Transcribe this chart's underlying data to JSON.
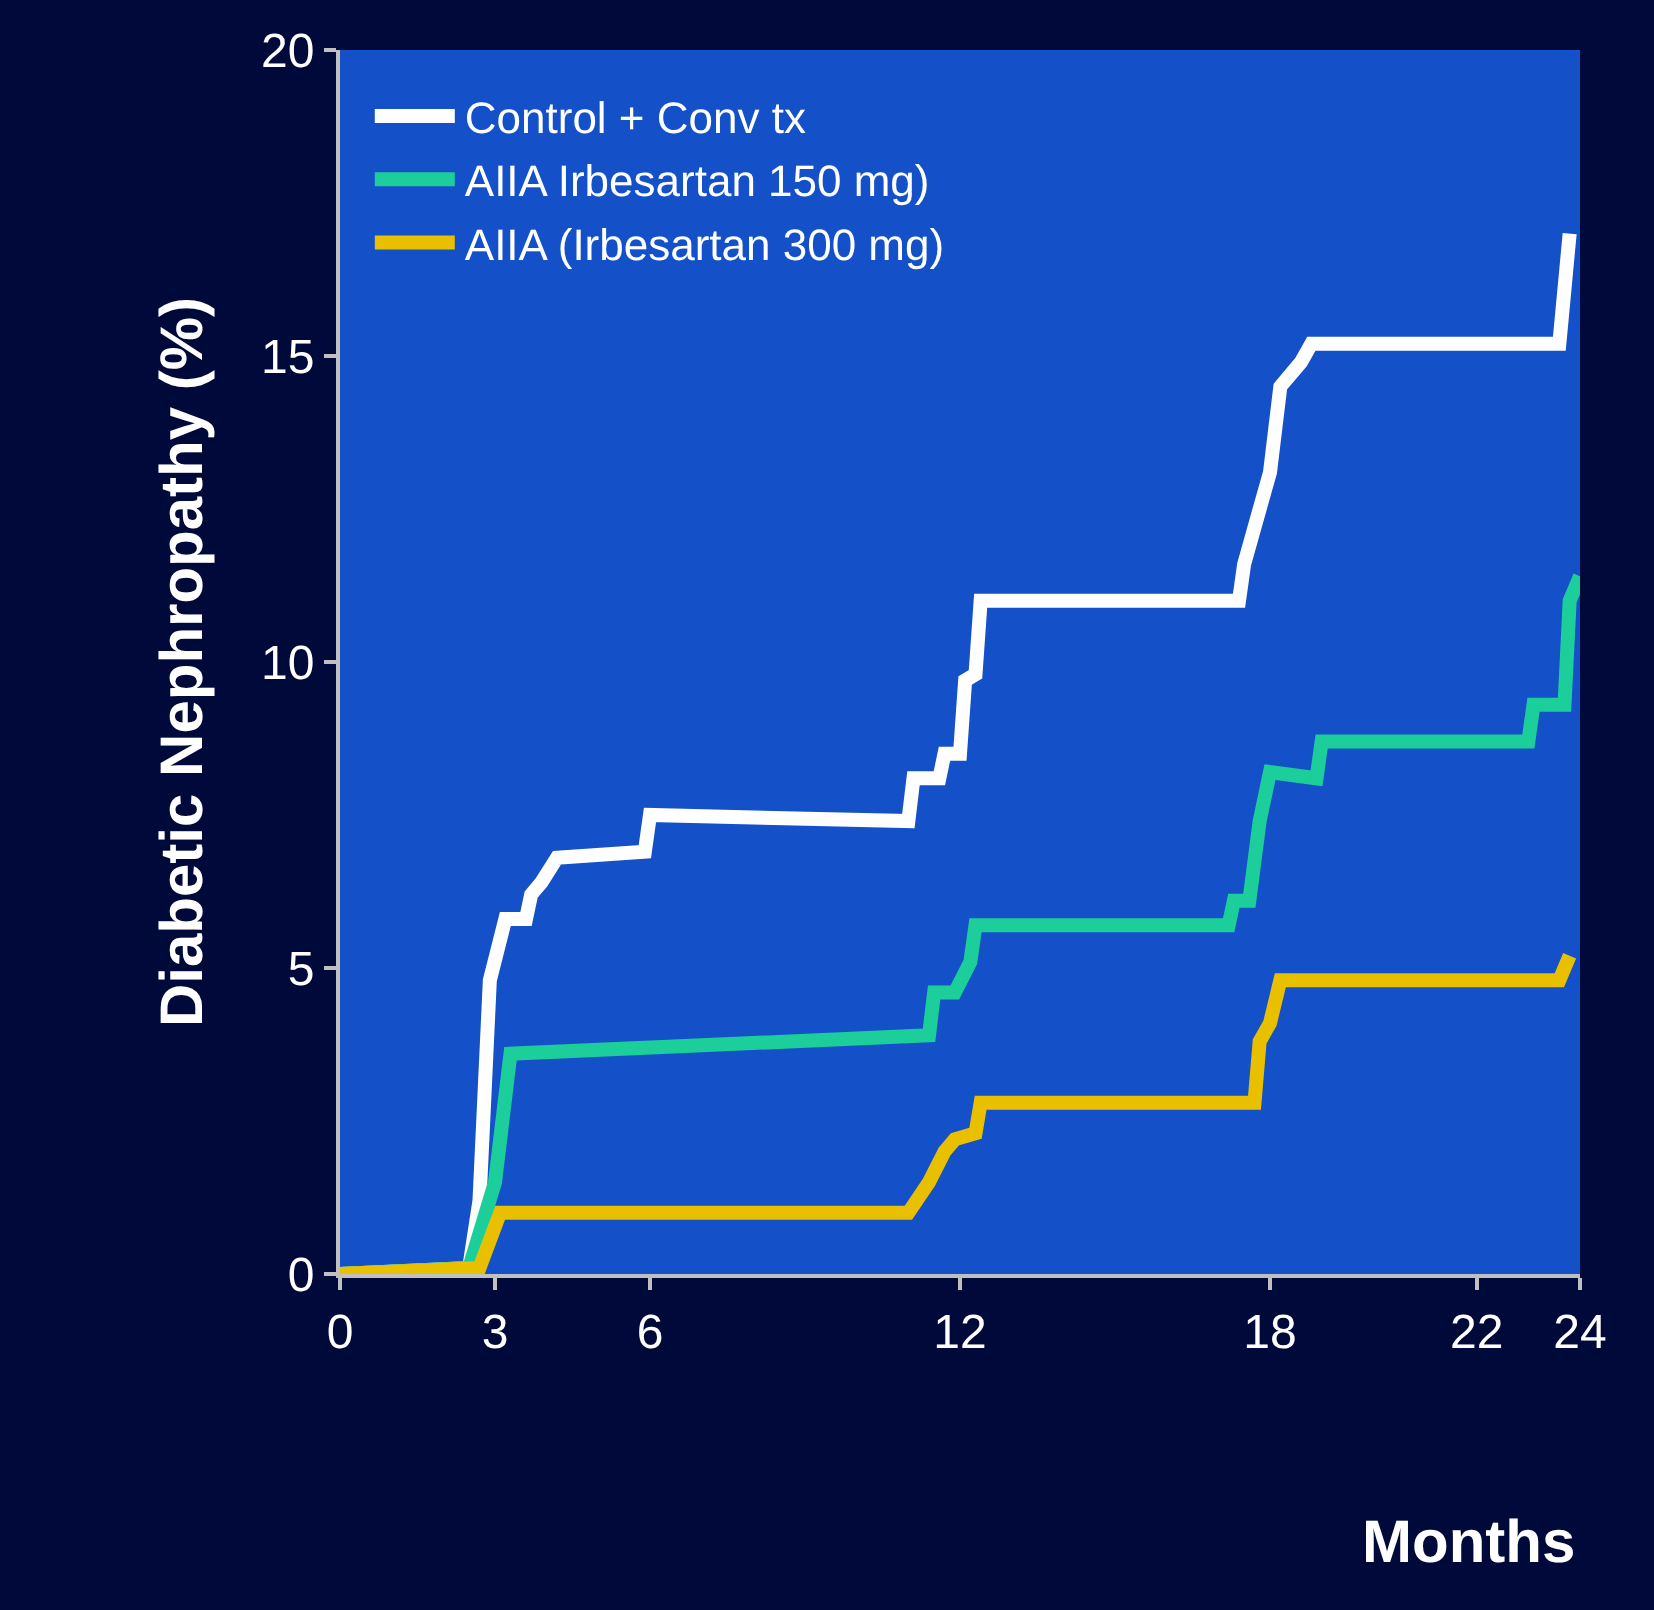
{
  "chart_data": {
    "type": "line",
    "xlabel": "Months",
    "ylabel": "Diabetic Nephropathy (%)",
    "xlim": [
      0,
      24
    ],
    "ylim": [
      0,
      20
    ],
    "xticks": [
      0,
      3,
      6,
      12,
      18,
      22,
      24
    ],
    "yticks": [
      0,
      5,
      10,
      15,
      20
    ],
    "grid": false,
    "legend": "top left",
    "marker": "none",
    "line_style": "solid",
    "series": [
      {
        "name": "Control + Conv tx",
        "color": "#ffffff",
        "x": [
          0,
          2.5,
          2.7,
          2.9,
          3.2,
          3.6,
          3.7,
          3.9,
          4.2,
          5.9,
          6.0,
          11.0,
          11.1,
          11.6,
          11.7,
          12.0,
          12.1,
          12.3,
          12.4,
          17.4,
          17.5,
          17.7,
          18.0,
          18.2,
          18.6,
          18.8,
          23.6,
          23.8
        ],
        "values": [
          0,
          0.1,
          1.2,
          4.8,
          5.8,
          5.8,
          6.2,
          6.4,
          6.8,
          6.9,
          7.5,
          7.4,
          8.1,
          8.1,
          8.5,
          8.5,
          9.7,
          9.8,
          11.0,
          11.0,
          11.6,
          12.2,
          13.1,
          14.5,
          14.9,
          15.2,
          15.2,
          17.0
        ]
      },
      {
        "name": "AIIA Irbesartan 150 mg)",
        "color": "#1ccf9a",
        "x": [
          0,
          2.5,
          3.0,
          3.3,
          11.4,
          11.5,
          11.9,
          12.2,
          12.3,
          17.2,
          17.3,
          17.6,
          17.8,
          18.0,
          18.9,
          19.0,
          23.0,
          23.1,
          23.7,
          23.8,
          24.0
        ],
        "values": [
          0,
          0.1,
          1.5,
          3.6,
          3.9,
          4.6,
          4.6,
          5.1,
          5.7,
          5.7,
          6.1,
          6.1,
          7.4,
          8.2,
          8.1,
          8.7,
          8.7,
          9.3,
          9.3,
          11.0,
          11.4
        ]
      },
      {
        "name": "AIIA (Irbesartan 300 mg)",
        "color": "#e8c000",
        "x": [
          0,
          2.7,
          3.1,
          11.0,
          11.4,
          11.7,
          11.9,
          12.3,
          12.4,
          17.7,
          17.8,
          18.0,
          18.2,
          23.6,
          23.8
        ],
        "values": [
          0,
          0.1,
          1.0,
          1.0,
          1.5,
          2.0,
          2.2,
          2.3,
          2.8,
          2.8,
          3.8,
          4.1,
          4.8,
          4.8,
          5.2
        ]
      }
    ]
  }
}
